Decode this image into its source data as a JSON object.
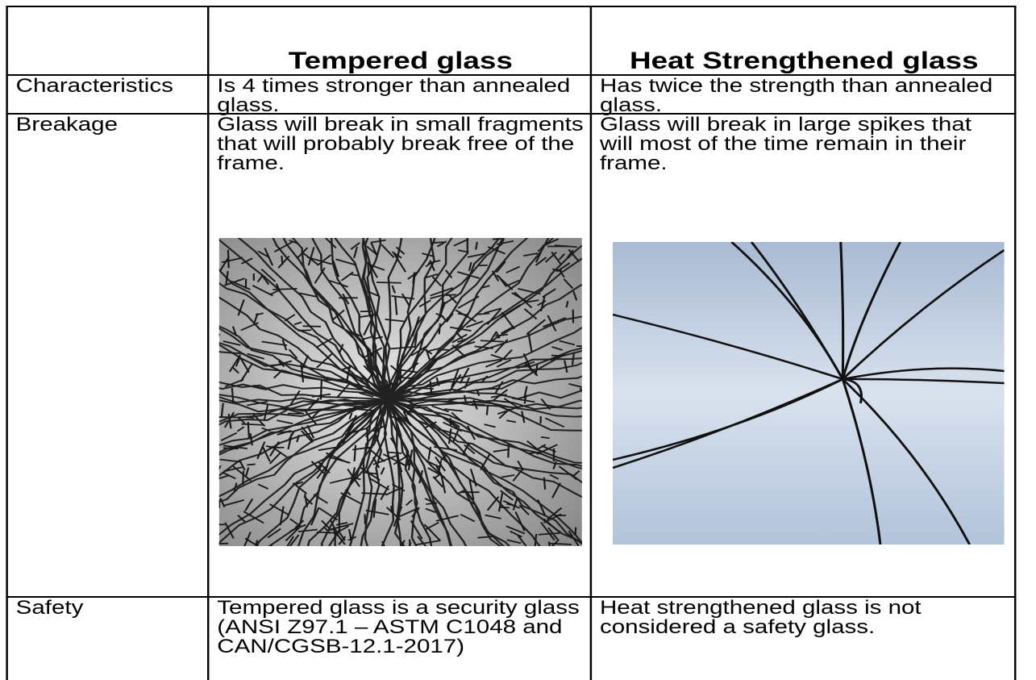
{
  "table": {
    "columns": [
      "Tempered glass",
      "Heat Strengthened glass"
    ],
    "rows": [
      {
        "label": "Characteristics",
        "cells": [
          "Is 4 times stronger than annealed glass.",
          "Has twice the strength than annealed glass."
        ]
      },
      {
        "label": "Breakage",
        "cells": [
          "Glass will break in small fragments that will probably break free of the frame.",
          "Glass will break in large spikes that will most of the time remain in their frame."
        ]
      },
      {
        "label": "Safety",
        "cells": [
          "Tempered glass is a security glass (ANSI Z97.1 – ASTM C1048 and CAN/CGSB-12.1-2017)",
          "Heat strengthened glass is not considered a safety glass."
        ]
      }
    ]
  }
}
